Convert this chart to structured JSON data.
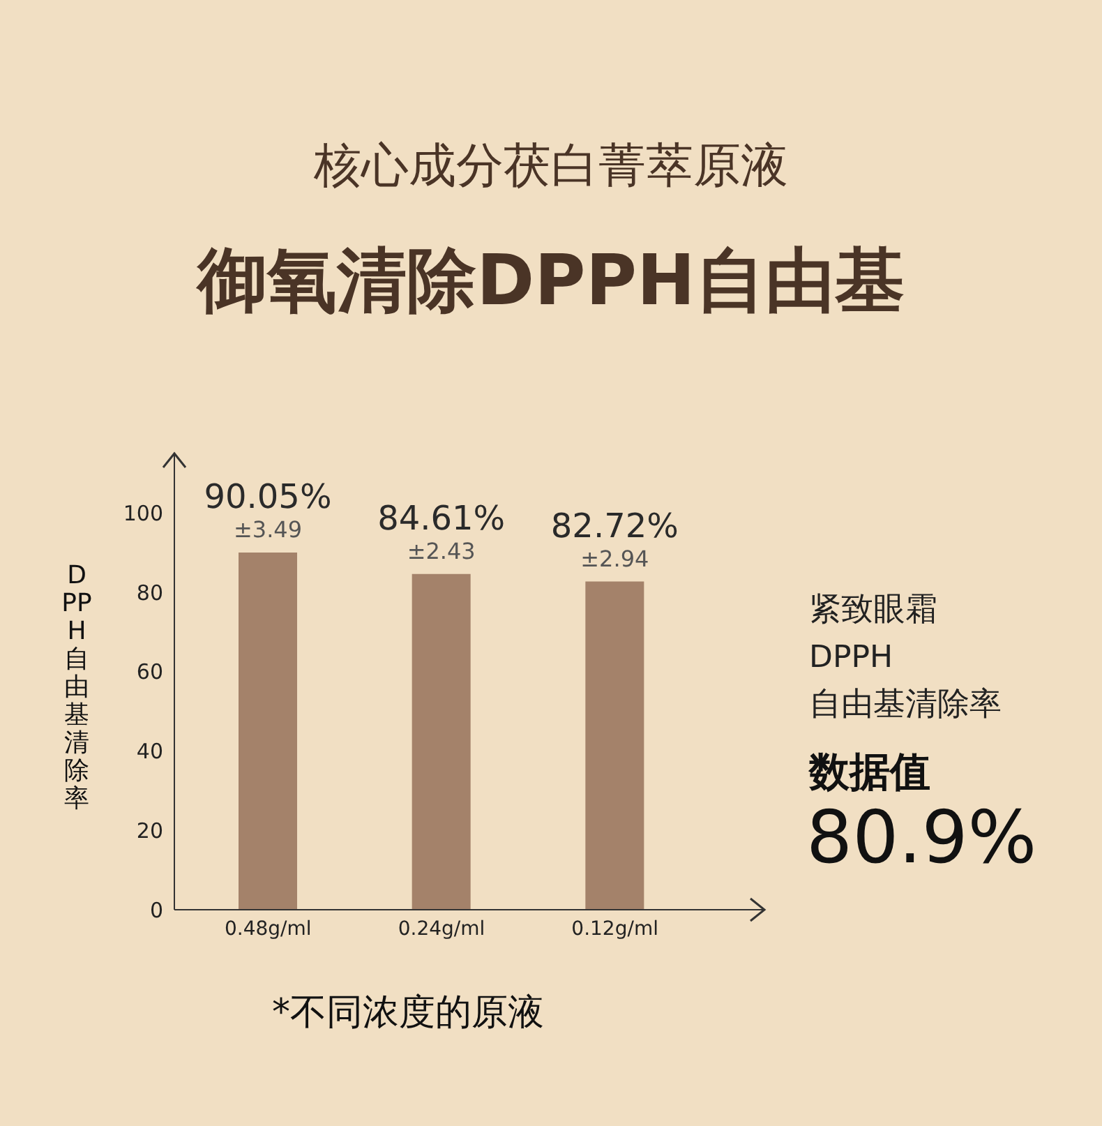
{
  "chart_data": {
    "type": "bar",
    "title": "御氧清除DPPH自由基",
    "subtitle": "核心成分茯白菁萃原液",
    "ylabel": "DPPH自由基清除率",
    "categories": [
      "0.48g/ml",
      "0.24g/ml",
      "0.12g/ml"
    ],
    "values": [
      90.05,
      84.61,
      82.72
    ],
    "value_labels": [
      "90.05%",
      "84.61%",
      "82.72%"
    ],
    "color": "#a4826a",
    "ylim": [
      0,
      115
    ],
    "yticks": [
      0,
      20,
      40,
      60,
      80,
      100
    ],
    "grid": false,
    "legend": false,
    "annotations": [
      {
        "text": "±3.49",
        "x": "0.48g/ml",
        "y": 90.05
      },
      {
        "text": "±2.43",
        "x": "0.24g/ml",
        "y": 84.61
      },
      {
        "text": "±2.94",
        "x": "0.12g/ml",
        "y": 82.72
      },
      "紧致眼霜",
      "DPPH",
      "自由基清除率",
      "数据值",
      "80.9%",
      "*不同浓度的原液"
    ]
  }
}
